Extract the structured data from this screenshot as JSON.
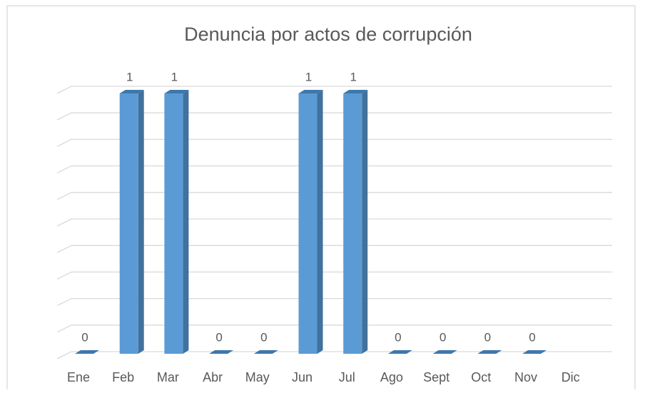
{
  "chart_data": {
    "type": "bar3d",
    "title": "Denuncia por actos de corrupción",
    "categories": [
      "Ene",
      "Feb",
      "Mar",
      "Abr",
      "May",
      "Jun",
      "Jul",
      "Ago",
      "Sept",
      "Oct",
      "Nov",
      "Dic"
    ],
    "values": [
      0,
      1,
      1,
      0,
      0,
      1,
      1,
      0,
      0,
      0,
      0,
      null
    ],
    "color": "#5b9bd5",
    "side_color": "#41719c",
    "top_color": "#3f77ab",
    "ylim": [
      0,
      1
    ],
    "yticks": [
      0,
      0.1,
      0.2,
      0.3,
      0.4,
      0.5,
      0.6,
      0.7,
      0.8,
      0.9,
      1
    ],
    "show_ytick_labels": false,
    "grid": true
  }
}
